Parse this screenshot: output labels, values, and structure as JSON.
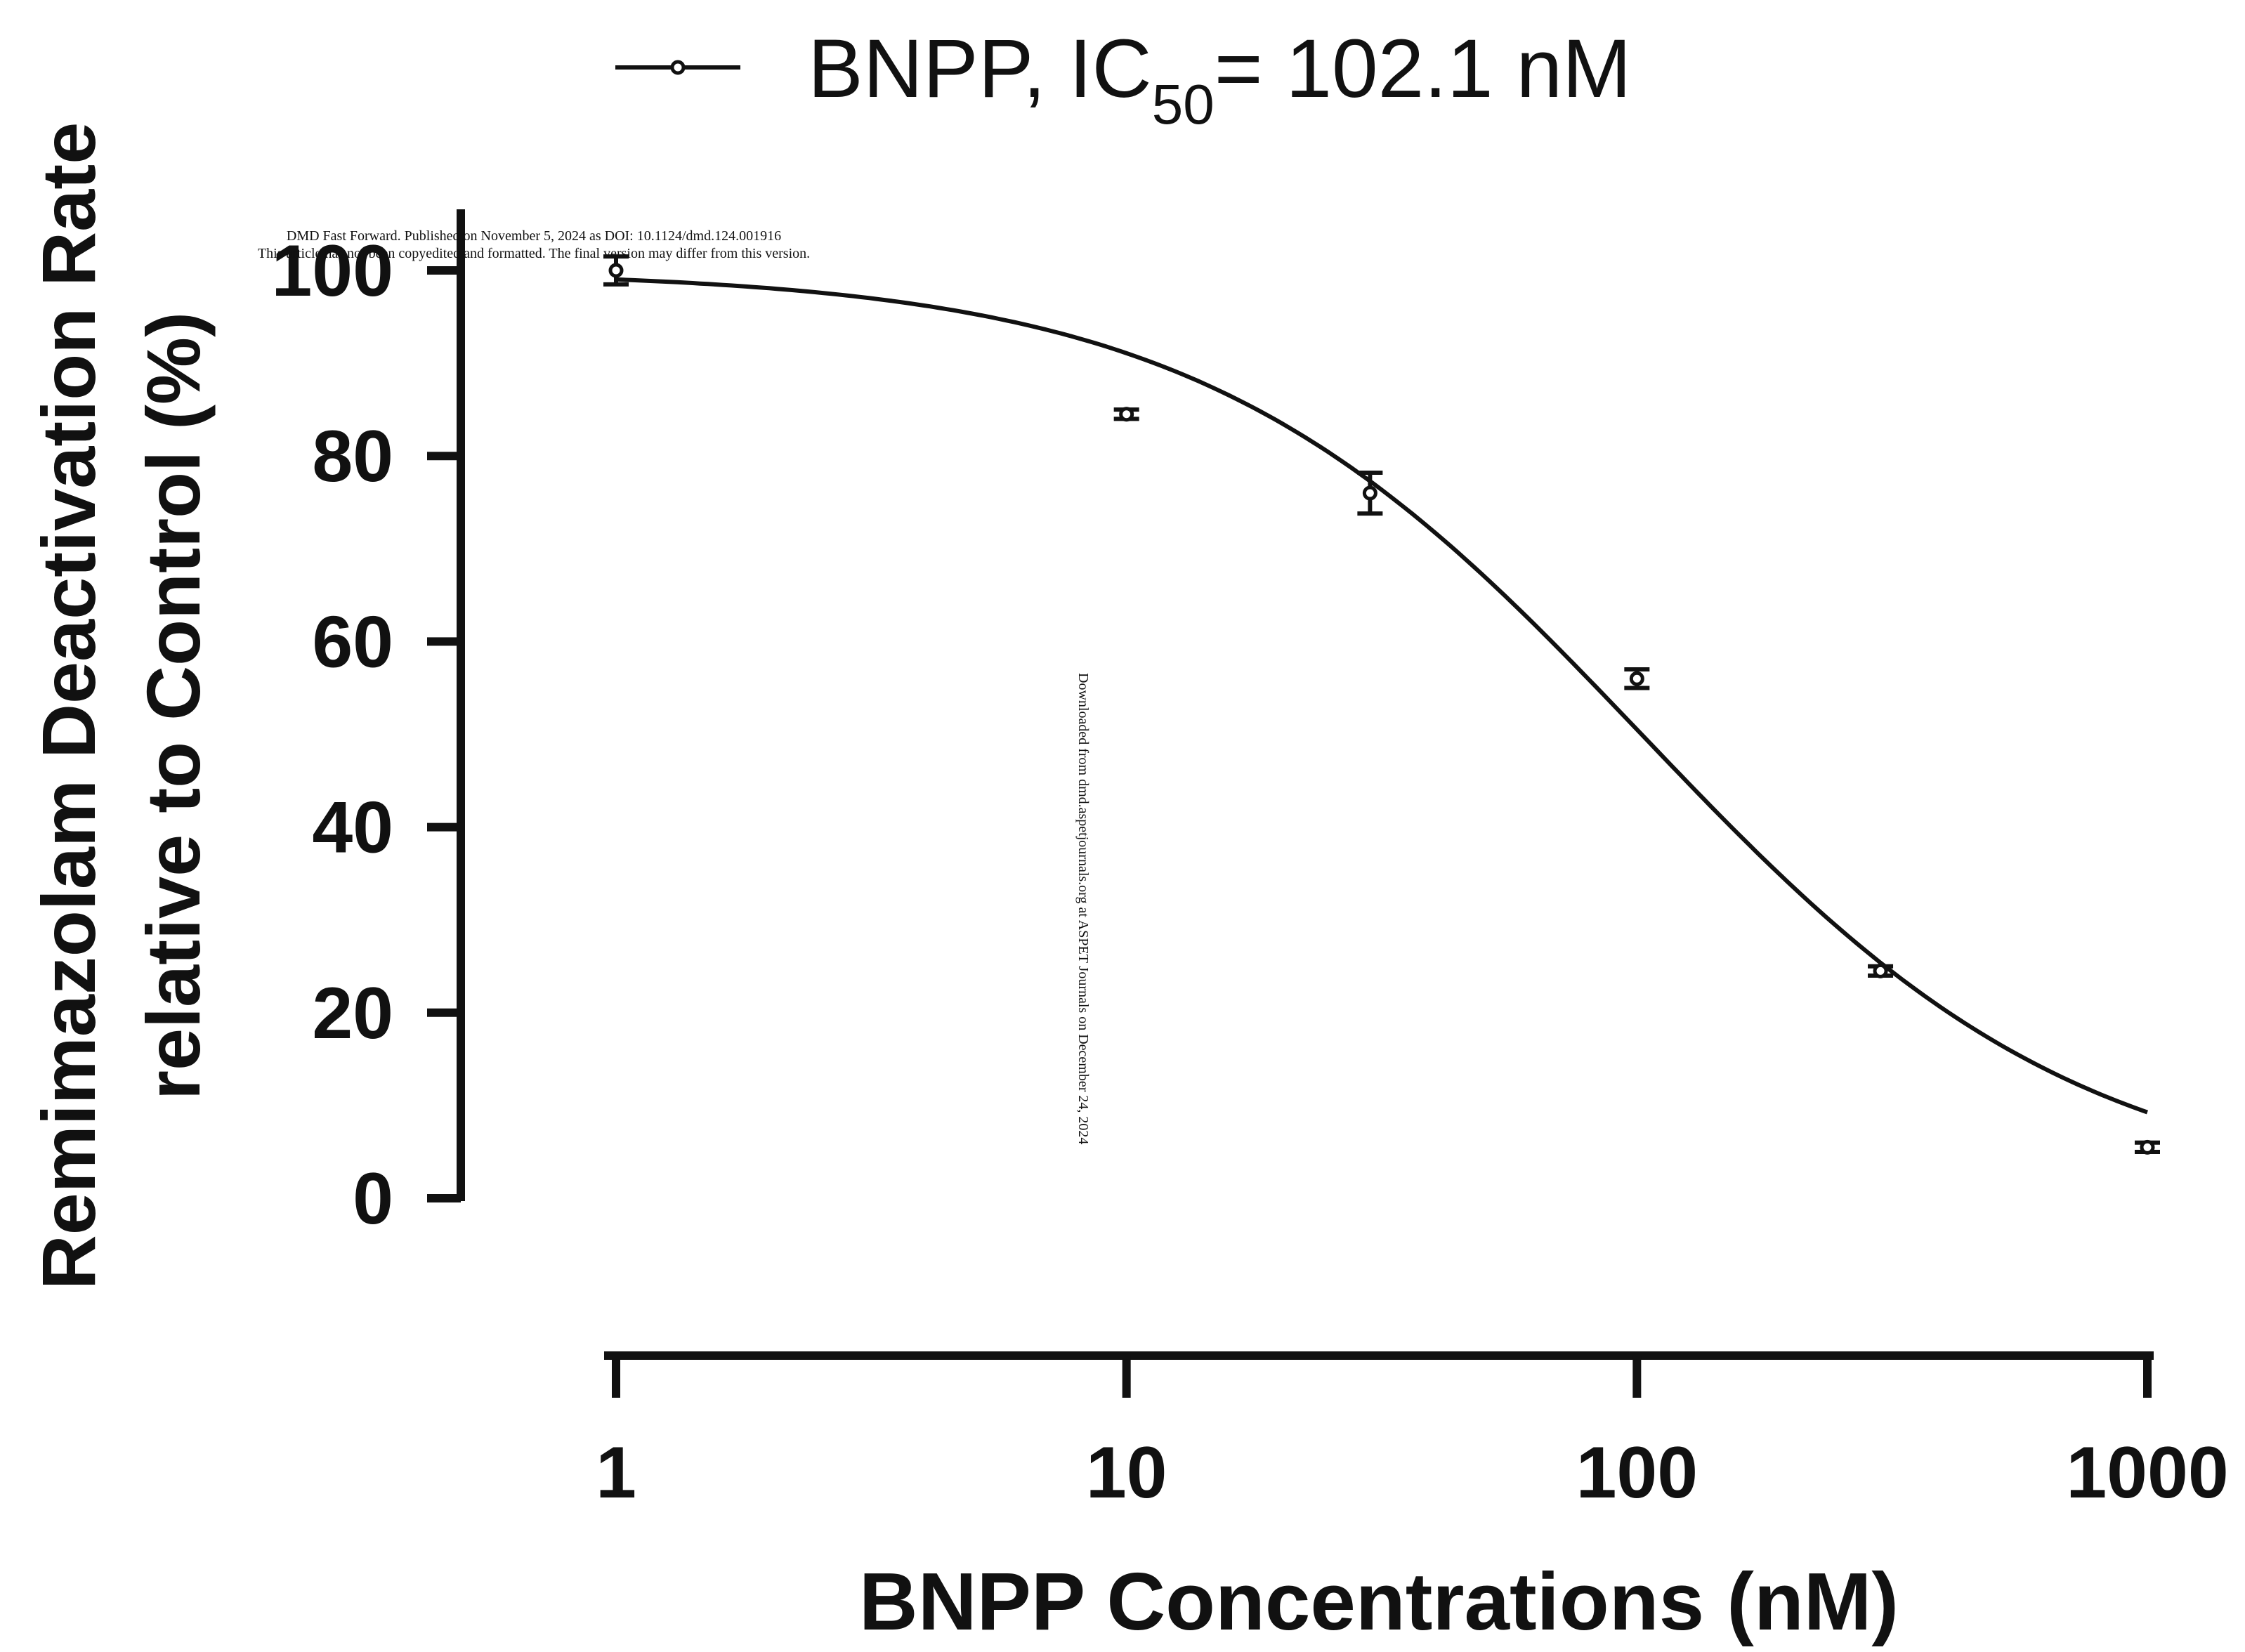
{
  "chart_data": {
    "type": "scatter",
    "title": "",
    "xlabel": "BNPP Concentrations (nM)",
    "ylabel": "Remimazolam Deactivation Rate relative to Control (%)",
    "ylabel_line1": "Remimazolam Deactivation Rate",
    "ylabel_line2": "relative to Control (%)",
    "x_scale": "log",
    "xlim": [
      1,
      1000
    ],
    "ylim": [
      0,
      100
    ],
    "x_ticks": [
      1,
      10,
      100,
      1000
    ],
    "x_tick_labels": [
      "1",
      "10",
      "100",
      "1000"
    ],
    "y_ticks": [
      0,
      20,
      40,
      60,
      80,
      100
    ],
    "y_tick_labels": [
      "0",
      "20",
      "40",
      "60",
      "80",
      "100"
    ],
    "grid": false,
    "legend_position": "top",
    "series": [
      {
        "name": "BNPP, IC50= 102.1 nM",
        "legend_main": "BNPP, IC",
        "legend_sub": "50",
        "legend_tail": "= 102.1 nM",
        "color": "#111111",
        "x": [
          1,
          10,
          30,
          100,
          300,
          1000
        ],
        "y": [
          100,
          84.5,
          76,
          56,
          24.5,
          5.5
        ],
        "error": [
          1.5,
          0.5,
          2.2,
          1,
          0.5,
          0.5
        ],
        "fit": {
          "model": "four-parameter logistic",
          "top": 100,
          "bottom": 0,
          "ic50": 102.1,
          "hill": 1
        }
      }
    ]
  },
  "watermark": {
    "top_line1": "DMD Fast Forward. Published on November 5, 2024 as DOI: 10.1124/dmd.124.001916",
    "top_line2": "This article has not been copyedited and formatted. The final version may differ from this version.",
    "side": "Downloaded from dmd.aspetjournals.org at ASPET Journals on December 24, 2024"
  }
}
